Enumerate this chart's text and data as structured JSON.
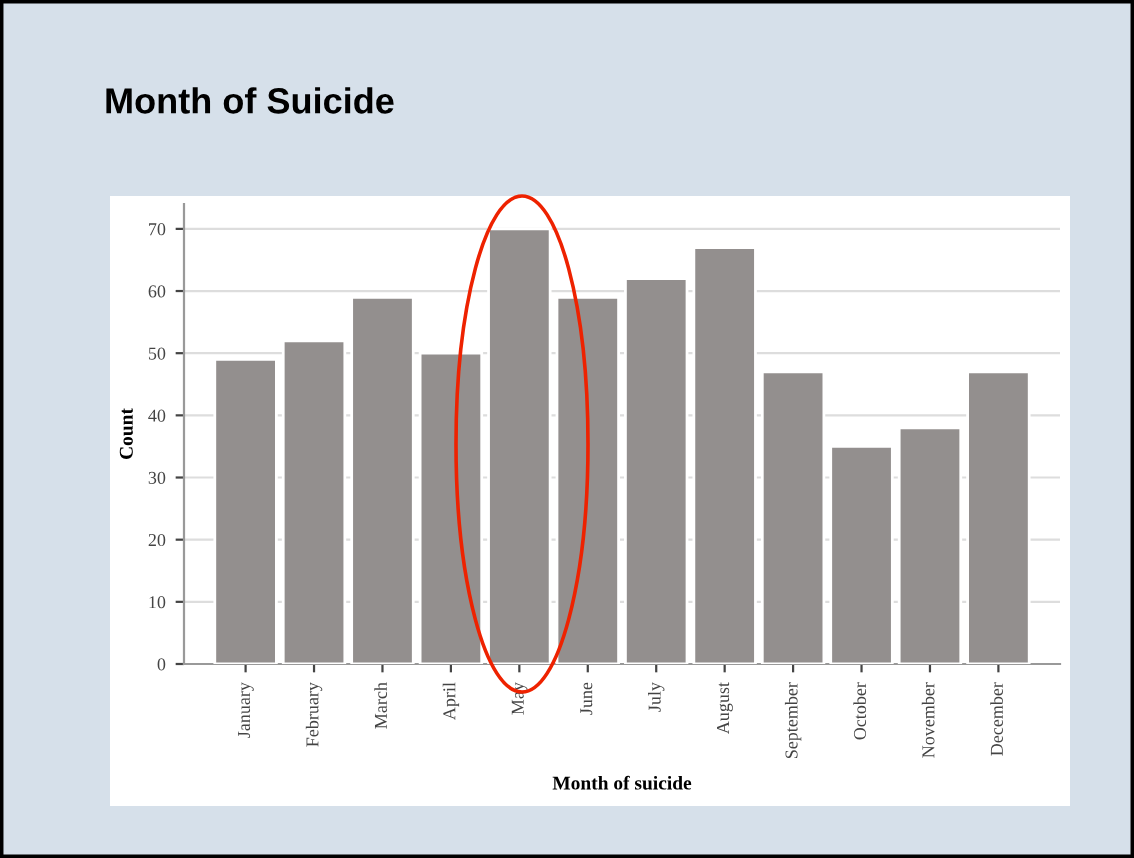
{
  "chart_data": {
    "type": "bar",
    "title": "Month of Suicide",
    "xlabel": "Month of suicide",
    "ylabel": "Count",
    "categories": [
      "January",
      "February",
      "March",
      "April",
      "May",
      "June",
      "July",
      "August",
      "September",
      "October",
      "November",
      "December"
    ],
    "values": [
      49,
      52,
      59,
      50,
      70,
      59,
      62,
      67,
      47,
      35,
      38,
      47
    ],
    "color": "#938f8e",
    "ylim": [
      0,
      74
    ],
    "yticks": [
      0,
      10,
      20,
      30,
      40,
      50,
      60,
      70
    ],
    "grid": "y"
  }
}
